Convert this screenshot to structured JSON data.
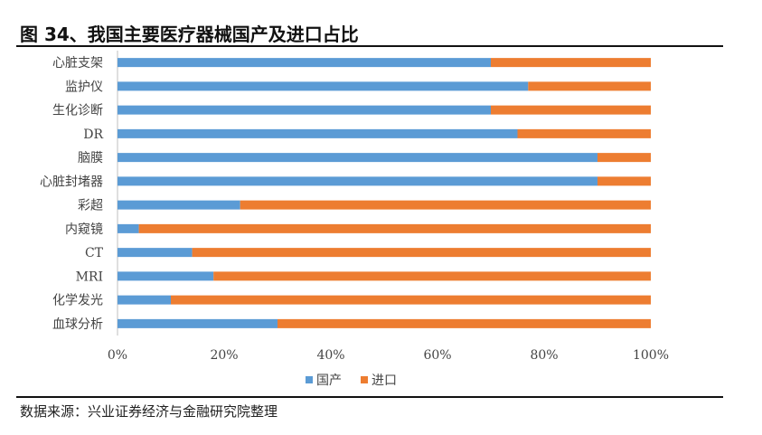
{
  "header": {
    "title": "图 34、我国主要医疗器械国产及进口占比"
  },
  "footer": {
    "source": "数据来源：兴业证券经济与金融研究院整理"
  },
  "colors": {
    "domestic": "#5B9BD5",
    "import": "#ED7D31"
  },
  "chart_data": {
    "type": "bar",
    "orientation": "horizontal",
    "stacked": "percent",
    "categories": [
      "心脏支架",
      "监护仪",
      "生化诊断",
      "DR",
      "脑膜",
      "心脏封堵器",
      "彩超",
      "内窥镜",
      "CT",
      "MRI",
      "化学发光",
      "血球分析"
    ],
    "series": [
      {
        "name": "国产",
        "values": [
          70,
          77,
          70,
          75,
          90,
          90,
          23,
          4,
          14,
          18,
          10,
          30
        ]
      },
      {
        "name": "进口",
        "values": [
          30,
          23,
          30,
          25,
          10,
          10,
          77,
          96,
          86,
          82,
          90,
          70
        ]
      }
    ],
    "x_ticks": [
      "0%",
      "20%",
      "40%",
      "60%",
      "80%",
      "100%"
    ],
    "xlim": [
      0,
      100
    ],
    "grid": false,
    "legend": "bottom"
  }
}
